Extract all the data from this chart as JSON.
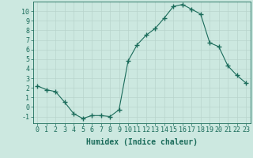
{
  "x": [
    0,
    1,
    2,
    3,
    4,
    5,
    6,
    7,
    8,
    9,
    10,
    11,
    12,
    13,
    14,
    15,
    16,
    17,
    18,
    19,
    20,
    21,
    22,
    23
  ],
  "y": [
    2.2,
    1.8,
    1.6,
    0.5,
    -0.7,
    -1.2,
    -0.9,
    -0.9,
    -1.0,
    -0.3,
    4.8,
    6.5,
    7.5,
    8.2,
    9.3,
    10.5,
    10.7,
    10.2,
    9.7,
    6.7,
    6.3,
    4.3,
    3.3,
    2.5
  ],
  "line_color": "#1a6b5a",
  "marker": "+",
  "marker_size": 4,
  "bg_color": "#cce8e0",
  "grid_color": "#b8d4cc",
  "axis_color": "#1a6b5a",
  "xlabel": "Humidex (Indice chaleur)",
  "xlim": [
    -0.5,
    23.5
  ],
  "ylim": [
    -1.7,
    11.0
  ],
  "yticks": [
    -1,
    0,
    1,
    2,
    3,
    4,
    5,
    6,
    7,
    8,
    9,
    10
  ],
  "xticks": [
    0,
    1,
    2,
    3,
    4,
    5,
    6,
    7,
    8,
    9,
    10,
    11,
    12,
    13,
    14,
    15,
    16,
    17,
    18,
    19,
    20,
    21,
    22,
    23
  ],
  "xlabel_fontsize": 7,
  "tick_fontsize": 6
}
